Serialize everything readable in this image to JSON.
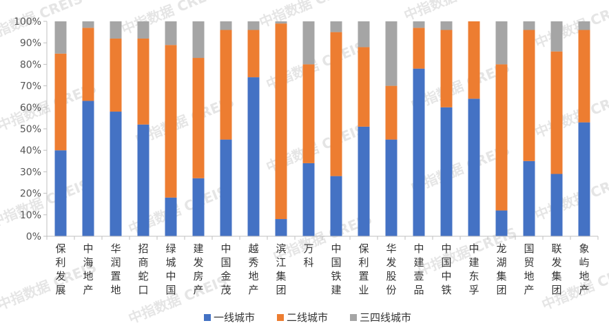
{
  "chart_data": {
    "type": "bar",
    "stacked": true,
    "categories": [
      "保利发展",
      "中海地产",
      "华润置地",
      "招商蛇口",
      "绿城中国",
      "建发房产",
      "中国金茂",
      "越秀地产",
      "滨江集团",
      "万科",
      "中国铁建",
      "保利置业",
      "华发股份",
      "中建壹品",
      "中国中铁",
      "中建东孚",
      "龙湖集团",
      "国贸地产",
      "联发集团",
      "象屿地产"
    ],
    "series": [
      {
        "name": "一线城市",
        "color": "#4472C4",
        "values": [
          40,
          63,
          58,
          52,
          18,
          27,
          45,
          74,
          8,
          34,
          28,
          51,
          45,
          78,
          60,
          64,
          12,
          35,
          29,
          53
        ]
      },
      {
        "name": "二线城市",
        "color": "#ED7D31",
        "values": [
          45,
          34,
          34,
          40,
          71,
          56,
          51,
          22,
          91,
          46,
          67,
          37,
          25,
          19,
          36,
          36,
          68,
          61,
          57,
          43
        ]
      },
      {
        "name": "三四线城市",
        "color": "#A5A5A5",
        "values": [
          15,
          3,
          8,
          8,
          11,
          17,
          4,
          4,
          1,
          20,
          5,
          12,
          30,
          3,
          4,
          0,
          20,
          4,
          14,
          4
        ]
      }
    ],
    "ylim": [
      0,
      100
    ],
    "yticks": [
      "0%",
      "10%",
      "20%",
      "30%",
      "40%",
      "50%",
      "60%",
      "70%",
      "80%",
      "90%",
      "100%"
    ],
    "legend_position": "bottom",
    "grid": false
  },
  "watermark": {
    "text": "中指数据 CREIS"
  }
}
